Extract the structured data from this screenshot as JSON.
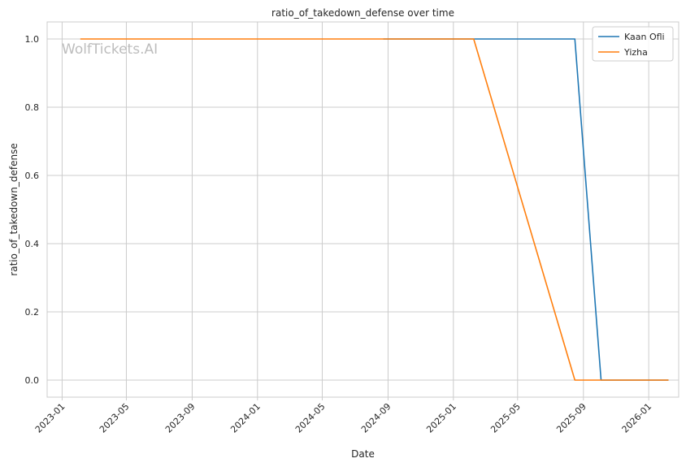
{
  "chart_data": {
    "type": "line",
    "title": "ratio_of_takedown_defense over time",
    "xlabel": "Date",
    "ylabel": "ratio_of_takedown_defense",
    "watermark": "WolfTickets.AI",
    "xlim": [
      "2022-12-04",
      "2026-02-26"
    ],
    "ylim": [
      -0.05,
      1.05
    ],
    "x_ticks": [
      "2023-01",
      "2023-05",
      "2023-09",
      "2024-01",
      "2024-05",
      "2024-09",
      "2025-01",
      "2025-05",
      "2025-09",
      "2026-01"
    ],
    "y_ticks": [
      "0.0",
      "0.2",
      "0.4",
      "0.6",
      "0.8",
      "1.0"
    ],
    "grid": true,
    "legend_position": "top-right",
    "series": [
      {
        "name": "Kaan Ofli",
        "color": "#1f77b4",
        "points": [
          {
            "x": "2024-08-23",
            "y": 1.0
          },
          {
            "x": "2025-08-16",
            "y": 1.0
          },
          {
            "x": "2025-10-04",
            "y": 0.0
          },
          {
            "x": "2026-02-07",
            "y": 0.0
          }
        ]
      },
      {
        "name": "Yizha",
        "color": "#ff7f0e",
        "points": [
          {
            "x": "2023-02-04",
            "y": 1.0
          },
          {
            "x": "2025-02-08",
            "y": 1.0
          },
          {
            "x": "2025-08-16",
            "y": 0.0
          },
          {
            "x": "2026-02-07",
            "y": 0.0
          }
        ]
      }
    ]
  }
}
